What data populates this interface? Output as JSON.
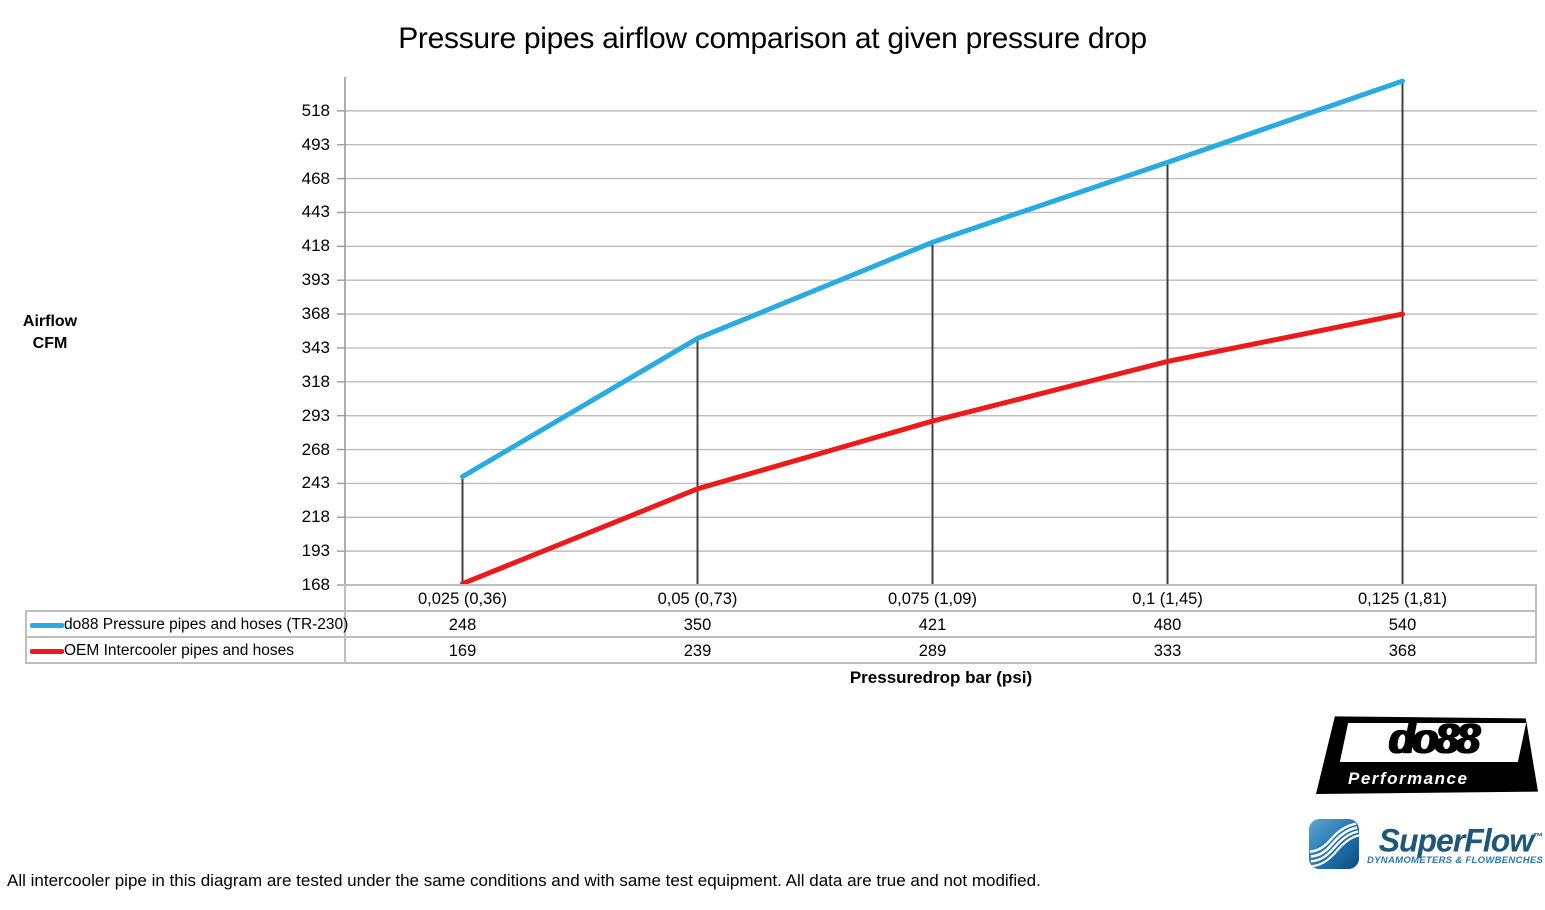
{
  "title": "Pressure pipes airflow comparison at given pressure drop",
  "chart_data": {
    "type": "line",
    "title": "Pressure pipes airflow comparison at given pressure drop",
    "ylabel_lines": [
      "Airflow",
      "CFM"
    ],
    "xlabel": "Pressuredrop bar (psi)",
    "categories": [
      "0,025 (0,36)",
      "0,05 (0,73)",
      "0,075 (1,09)",
      "0,1 (1,45)",
      "0,125 (1,81)"
    ],
    "series": [
      {
        "name": "do88 Pressure pipes and hoses (TR-230)",
        "color": "#29ABE2",
        "values": [
          248,
          350,
          421,
          480,
          540
        ]
      },
      {
        "name": "OEM Intercooler pipes and hoses",
        "color": "#EC1B1B",
        "values": [
          169,
          239,
          289,
          333,
          368
        ]
      }
    ],
    "yticks": [
      168,
      193,
      218,
      243,
      268,
      293,
      318,
      343,
      368,
      393,
      418,
      443,
      468,
      493,
      518
    ],
    "ylim": [
      168,
      543
    ],
    "grid": "horizontal gridlines at every y tick, small tick marks left of axis",
    "legend_position": "bottom-left table; legend rows align with per-category value rows",
    "drop_lines_from_top_series": true
  },
  "colors": {
    "series_do88": "#29ABE2",
    "series_oem": "#EC1B1B",
    "gridline": "#BDBDBD",
    "axis": "#9A9A9A",
    "drop_line": "#404040",
    "table_border": "#BFBFBF",
    "background": "#FFFFFF",
    "superflow_dark": "#1D5878",
    "superflow_light": "#2879A8"
  },
  "footer": {
    "note": "All intercooler pipe in this diagram are tested under the same conditions and with same test equipment. All data are true and not modified."
  },
  "logos": {
    "do88": {
      "name": "do88",
      "tagline": "Performance"
    },
    "superflow": {
      "name": "SuperFlow",
      "trademark": "™",
      "tagline": "DYNAMOMETERS & FLOWBENCHES"
    }
  }
}
